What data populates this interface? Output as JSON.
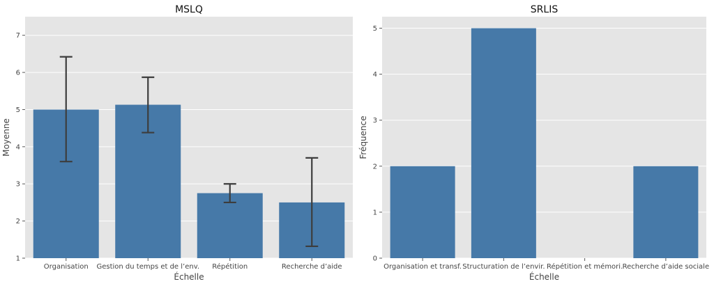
{
  "chart_data": [
    {
      "type": "bar",
      "title": "MSLQ",
      "xlabel": "Échelle",
      "ylabel": "Moyenne",
      "categories": [
        "Organisation",
        "Gestion du temps et de l’env.",
        "Répétition",
        "Recherche d’aide"
      ],
      "values": [
        5.0,
        5.13,
        2.75,
        2.5
      ],
      "error_low": [
        3.6,
        4.38,
        2.5,
        1.32
      ],
      "error_high": [
        6.42,
        5.87,
        3.0,
        3.7
      ],
      "ylim": [
        1,
        7.5
      ],
      "yticks": [
        1,
        2,
        3,
        4,
        5,
        6,
        7
      ],
      "grid": true,
      "colors": {
        "bar": "#4679a8",
        "error": "#3d3d3d",
        "background": "#e5e5e5"
      }
    },
    {
      "type": "bar",
      "title": "SRLIS",
      "xlabel": "Échelle",
      "ylabel": "Fréquence",
      "categories": [
        "Organisation et transf.",
        "Structuration de l’envir.",
        "Répétition et mémori.",
        "Recherche d’aide sociale"
      ],
      "values": [
        2,
        5,
        0,
        2
      ],
      "ylim": [
        0,
        5.25
      ],
      "yticks": [
        0,
        1,
        2,
        3,
        4,
        5
      ],
      "grid": true,
      "colors": {
        "bar": "#4679a8",
        "background": "#e5e5e5"
      }
    }
  ]
}
